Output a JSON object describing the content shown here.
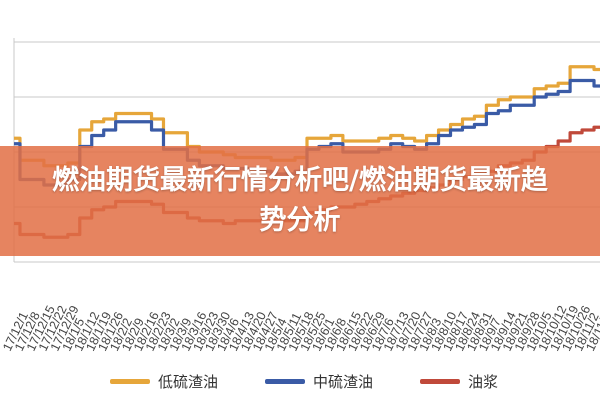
{
  "banner": {
    "title": "燃油期货最新行情分析吧/燃油期货最新趋势分析"
  },
  "colors": {
    "low_sulfur": "#e6a63a",
    "medium_sulfur": "#3a5ba6",
    "fuel_oil": "#c0493a",
    "grid": "#c8c8c8"
  },
  "chart_data": {
    "type": "line",
    "title": "",
    "xlabel": "",
    "ylabel": "",
    "grid": true,
    "legend_position": "bottom",
    "x": [
      "17/12/1",
      "17/12/8",
      "17/12/15",
      "17/12/22",
      "17/12/29",
      "18/1/5",
      "18/1/12",
      "18/1/19",
      "18/1/26",
      "18/2/2",
      "18/2/9",
      "18/2/16",
      "18/2/23",
      "18/3/2",
      "18/3/9",
      "18/3/16",
      "18/3/23",
      "18/3/30",
      "18/4/6",
      "18/4/13",
      "18/4/20",
      "18/4/27",
      "18/5/4",
      "18/5/11",
      "18/5/18",
      "18/5/25",
      "18/6/1",
      "18/6/8",
      "18/6/15",
      "18/6/22",
      "18/6/29",
      "18/7/6",
      "18/7/13",
      "18/7/20",
      "18/7/27",
      "18/8/3",
      "18/8/10",
      "18/8/17",
      "18/8/24",
      "18/8/31",
      "18/9/7",
      "18/9/14",
      "18/9/21",
      "18/9/28",
      "18/10/5",
      "18/10/12",
      "18/10/19",
      "18/10/26",
      "18/11/2",
      "18/11/9"
    ],
    "series": [
      {
        "name": "低硫渣油",
        "values": [
          45,
          37,
          37,
          35,
          35,
          36,
          48,
          51,
          52,
          54,
          54,
          54,
          52,
          47,
          47,
          42,
          40,
          40,
          39,
          38,
          38,
          38,
          37,
          37,
          38,
          45,
          45,
          46,
          44,
          44,
          44,
          45,
          46,
          45,
          44,
          46,
          48,
          50,
          52,
          53,
          57,
          59,
          60,
          60,
          63,
          64,
          65,
          71,
          71,
          70
        ]
      },
      {
        "name": "中硫渣油",
        "values": [
          43,
          30,
          30,
          28,
          28,
          30,
          42,
          46,
          48,
          51,
          51,
          51,
          48,
          41,
          41,
          37,
          35,
          35,
          34,
          34,
          34,
          33,
          32,
          32,
          33,
          41,
          42,
          43,
          40,
          40,
          40,
          41,
          43,
          42,
          41,
          43,
          46,
          48,
          49,
          50,
          54,
          55,
          57,
          57,
          60,
          61,
          62,
          66,
          66,
          64
        ]
      },
      {
        "name": "油浆",
        "values": [
          14,
          10,
          10,
          9,
          9,
          10,
          16,
          19,
          20,
          22,
          22,
          22,
          21,
          18,
          18,
          16,
          15,
          15,
          14,
          15,
          15,
          15,
          15,
          15,
          15,
          18,
          19,
          20,
          20,
          21,
          22,
          23,
          24,
          25,
          26,
          27,
          28,
          30,
          31,
          32,
          33,
          35,
          36,
          37,
          40,
          42,
          44,
          47,
          48,
          49
        ]
      }
    ]
  }
}
